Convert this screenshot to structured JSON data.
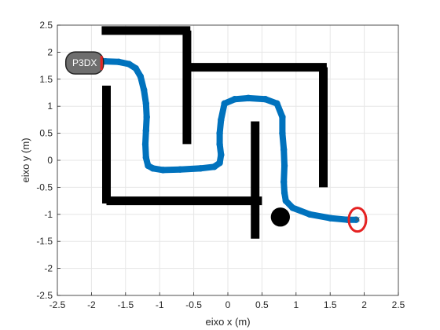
{
  "chart_data": {
    "type": "line",
    "title": "",
    "xlabel": "eixo x (m)",
    "ylabel": "eixo y (m)",
    "xlim": [
      -2.5,
      2.5
    ],
    "ylim": [
      -2.5,
      2.5
    ],
    "xticks": [
      "-2.5",
      "-2",
      "-1.5",
      "-1",
      "-0.5",
      "0",
      "0.5",
      "1",
      "1.5",
      "2",
      "2.5"
    ],
    "yticks": [
      "-2.5",
      "-2",
      "-1.5",
      "-1",
      "-0.5",
      "0",
      "0.5",
      "1",
      "1.5",
      "2",
      "2.5"
    ],
    "grid": true,
    "colors": {
      "path": "#0072bd",
      "walls": "#000000",
      "goal": "#e52222",
      "robot_body": "#6e6e6e",
      "grid": "#e6e6e6"
    },
    "robot": {
      "label": "P3DX",
      "x": -2.1,
      "y": 1.8
    },
    "goal": {
      "marker": "×",
      "x": 1.9,
      "y": -1.1
    },
    "obstacle": {
      "x": 0.77,
      "y": -1.05,
      "radius": 0.14
    },
    "walls": [
      {
        "x1": -1.85,
        "y1": 2.4,
        "x2": -0.55,
        "y2": 2.4
      },
      {
        "x1": -0.6,
        "y1": 2.4,
        "x2": -0.6,
        "y2": 0.3
      },
      {
        "x1": -0.6,
        "y1": 1.72,
        "x2": 1.45,
        "y2": 1.72
      },
      {
        "x1": 1.4,
        "y1": 1.72,
        "x2": 1.4,
        "y2": -0.5
      },
      {
        "x1": -1.78,
        "y1": 1.38,
        "x2": -1.78,
        "y2": -0.8
      },
      {
        "x1": -1.78,
        "y1": -0.75,
        "x2": 0.5,
        "y2": -0.75
      },
      {
        "x1": 0.4,
        "y1": 0.72,
        "x2": 0.4,
        "y2": -1.45
      }
    ],
    "series": [
      {
        "x": [
          -1.9,
          -1.8,
          -1.6,
          -1.45,
          -1.35,
          -1.28,
          -1.23,
          -1.2,
          -1.19,
          -1.2,
          -1.21,
          -1.2,
          -1.17,
          -1.1,
          -0.95,
          -0.7,
          -0.4,
          -0.2,
          -0.12,
          -0.1,
          -0.12,
          -0.12,
          -0.1,
          -0.05,
          0.1,
          0.3,
          0.55,
          0.72,
          0.8,
          0.8,
          0.82,
          0.83,
          0.82,
          0.83,
          0.85,
          0.95,
          1.2,
          1.5,
          1.75,
          1.88
        ],
        "y": [
          1.83,
          1.83,
          1.82,
          1.78,
          1.7,
          1.55,
          1.3,
          1.05,
          0.8,
          0.55,
          0.3,
          0.05,
          -0.1,
          -0.15,
          -0.18,
          -0.17,
          -0.15,
          -0.12,
          -0.05,
          0.1,
          0.3,
          0.5,
          0.75,
          1.05,
          1.13,
          1.15,
          1.13,
          1.05,
          0.8,
          0.5,
          0.2,
          -0.1,
          -0.4,
          -0.6,
          -0.75,
          -0.88,
          -1.0,
          -1.07,
          -1.1,
          -1.1
        ]
      }
    ]
  }
}
